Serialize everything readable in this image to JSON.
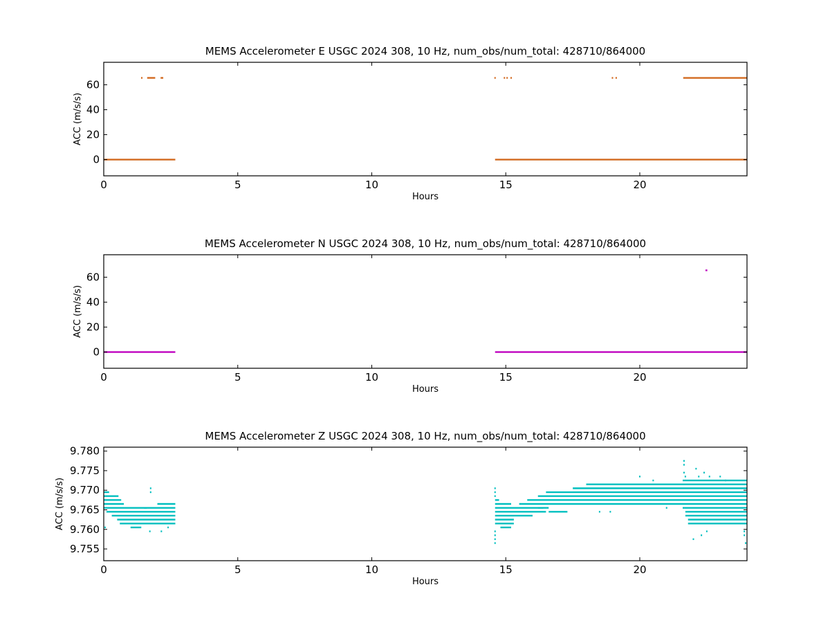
{
  "chart_data": [
    {
      "type": "scatter",
      "title": "MEMS Accelerometer E USGC 2024 308, 10 Hz, num_obs/num_total: 428710/864000",
      "xlabel": "Hours",
      "ylabel": "ACC (m/s/s)",
      "xlim": [
        0,
        24
      ],
      "ylim": [
        -13,
        78
      ],
      "xticks": [
        "0",
        "5",
        "10",
        "15",
        "20"
      ],
      "yticks": [
        "0",
        "20",
        "40",
        "60"
      ],
      "color": "#d2691e",
      "series": [
        {
          "segments": [
            {
              "x": [
                0,
                2.67
              ],
              "y": 0
            },
            {
              "x": [
                14.6,
                24
              ],
              "y": 0
            },
            {
              "x": [
                1.62,
                1.92
              ],
              "y": 65.5
            },
            {
              "x": [
                2.12,
                2.22
              ],
              "y": 65.5
            },
            {
              "x": [
                21.62,
                24
              ],
              "y": 65.5
            }
          ],
          "points": [
            {
              "x": 1.42,
              "y": 65.5
            },
            {
              "x": 14.6,
              "y": 65.5
            },
            {
              "x": 14.95,
              "y": 65.5
            },
            {
              "x": 15.05,
              "y": 65.5
            },
            {
              "x": 15.2,
              "y": 65.5
            },
            {
              "x": 18.98,
              "y": 65.5
            },
            {
              "x": 19.12,
              "y": 65.5
            }
          ]
        }
      ]
    },
    {
      "type": "scatter",
      "title": "MEMS Accelerometer N USGC 2024 308, 10 Hz, num_obs/num_total: 428710/864000",
      "xlabel": "Hours",
      "ylabel": "ACC (m/s/s)",
      "xlim": [
        0,
        24
      ],
      "ylim": [
        -13,
        78
      ],
      "xticks": [
        "0",
        "5",
        "10",
        "15",
        "20"
      ],
      "yticks": [
        "0",
        "20",
        "40",
        "60"
      ],
      "color": "#bf00bf",
      "series": [
        {
          "segments": [
            {
              "x": [
                0,
                2.67
              ],
              "y": 0
            },
            {
              "x": [
                14.6,
                24
              ],
              "y": 0
            },
            {
              "x": [
                22.45,
                22.52
              ],
              "y": 65.5
            }
          ],
          "points": []
        }
      ]
    },
    {
      "type": "scatter",
      "title": "MEMS Accelerometer Z USGC 2024 308, 10 Hz, num_obs/num_total: 428710/864000",
      "xlabel": "Hours",
      "ylabel": "ACC (m/s/s)",
      "xlim": [
        0,
        24
      ],
      "ylim": [
        9.752,
        9.781
      ],
      "xticks": [
        "0",
        "5",
        "10",
        "15",
        "20"
      ],
      "yticks": [
        "9.755",
        "9.760",
        "9.765",
        "9.770",
        "9.775",
        "9.780"
      ],
      "color": "#00bfbf",
      "series": [
        {
          "segments": [
            {
              "x": [
                0,
                0.2
              ],
              "y": 9.7695
            },
            {
              "x": [
                0,
                0.55
              ],
              "y": 9.7685
            },
            {
              "x": [
                0,
                0.65
              ],
              "y": 9.7675
            },
            {
              "x": [
                0,
                0.75
              ],
              "y": 9.7665
            },
            {
              "x": [
                0,
                1.6
              ],
              "y": 9.7655
            },
            {
              "x": [
                0.1,
                2.67
              ],
              "y": 9.7645
            },
            {
              "x": [
                0.3,
                2.67
              ],
              "y": 9.7635
            },
            {
              "x": [
                0.5,
                2.67
              ],
              "y": 9.7625
            },
            {
              "x": [
                0.6,
                2.67
              ],
              "y": 9.7615
            },
            {
              "x": [
                1.0,
                1.4
              ],
              "y": 9.7605
            },
            {
              "x": [
                1.5,
                2.67
              ],
              "y": 9.7655
            },
            {
              "x": [
                2.0,
                2.67
              ],
              "y": 9.7665
            },
            {
              "x": [
                14.6,
                14.75
              ],
              "y": 9.7675
            },
            {
              "x": [
                14.6,
                15.2
              ],
              "y": 9.7665
            },
            {
              "x": [
                14.6,
                16.4
              ],
              "y": 9.7655
            },
            {
              "x": [
                14.6,
                16.5
              ],
              "y": 9.7645
            },
            {
              "x": [
                14.6,
                16.0
              ],
              "y": 9.7635
            },
            {
              "x": [
                14.6,
                15.3
              ],
              "y": 9.7625
            },
            {
              "x": [
                14.6,
                15.3
              ],
              "y": 9.7615
            },
            {
              "x": [
                14.8,
                15.2
              ],
              "y": 9.7605
            },
            {
              "x": [
                15.5,
                24
              ],
              "y": 9.7665
            },
            {
              "x": [
                15.8,
                24
              ],
              "y": 9.7675
            },
            {
              "x": [
                16.2,
                24
              ],
              "y": 9.7685
            },
            {
              "x": [
                16.5,
                24
              ],
              "y": 9.7695
            },
            {
              "x": [
                17.5,
                24
              ],
              "y": 9.7705
            },
            {
              "x": [
                18.0,
                24
              ],
              "y": 9.7715
            },
            {
              "x": [
                21.6,
                24
              ],
              "y": 9.7655
            },
            {
              "x": [
                21.7,
                24
              ],
              "y": 9.7645
            },
            {
              "x": [
                21.7,
                24
              ],
              "y": 9.7635
            },
            {
              "x": [
                21.8,
                24
              ],
              "y": 9.7625
            },
            {
              "x": [
                21.8,
                24
              ],
              "y": 9.7615
            },
            {
              "x": [
                21.6,
                24
              ],
              "y": 9.7725
            },
            {
              "x": [
                16.6,
                17.3
              ],
              "y": 9.7645
            },
            {
              "x": [
                16.2,
                16.6
              ],
              "y": 9.7655
            }
          ],
          "points": [
            {
              "x": 0.05,
              "y": 9.7605
            },
            {
              "x": 1.72,
              "y": 9.7595
            },
            {
              "x": 1.75,
              "y": 9.7705
            },
            {
              "x": 1.75,
              "y": 9.7695
            },
            {
              "x": 2.15,
              "y": 9.7595
            },
            {
              "x": 2.4,
              "y": 9.7605
            },
            {
              "x": 14.6,
              "y": 9.7705
            },
            {
              "x": 14.6,
              "y": 9.7695
            },
            {
              "x": 14.6,
              "y": 9.7685
            },
            {
              "x": 14.6,
              "y": 9.7595
            },
            {
              "x": 14.6,
              "y": 9.7585
            },
            {
              "x": 14.6,
              "y": 9.7575
            },
            {
              "x": 14.6,
              "y": 9.7565
            },
            {
              "x": 18.5,
              "y": 9.7645
            },
            {
              "x": 18.9,
              "y": 9.7645
            },
            {
              "x": 20.0,
              "y": 9.7735
            },
            {
              "x": 20.5,
              "y": 9.7725
            },
            {
              "x": 21.0,
              "y": 9.7655
            },
            {
              "x": 21.65,
              "y": 9.7775
            },
            {
              "x": 21.65,
              "y": 9.7765
            },
            {
              "x": 21.65,
              "y": 9.7745
            },
            {
              "x": 21.7,
              "y": 9.7735
            },
            {
              "x": 22.1,
              "y": 9.7755
            },
            {
              "x": 22.2,
              "y": 9.7735
            },
            {
              "x": 22.4,
              "y": 9.7745
            },
            {
              "x": 22.6,
              "y": 9.7735
            },
            {
              "x": 22.0,
              "y": 9.7575
            },
            {
              "x": 22.3,
              "y": 9.7585
            },
            {
              "x": 22.5,
              "y": 9.7595
            },
            {
              "x": 23.0,
              "y": 9.7735
            },
            {
              "x": 23.2,
              "y": 9.7725
            },
            {
              "x": 23.9,
              "y": 9.7595
            },
            {
              "x": 23.9,
              "y": 9.7585
            },
            {
              "x": 23.95,
              "y": 9.7565
            }
          ]
        }
      ]
    }
  ]
}
